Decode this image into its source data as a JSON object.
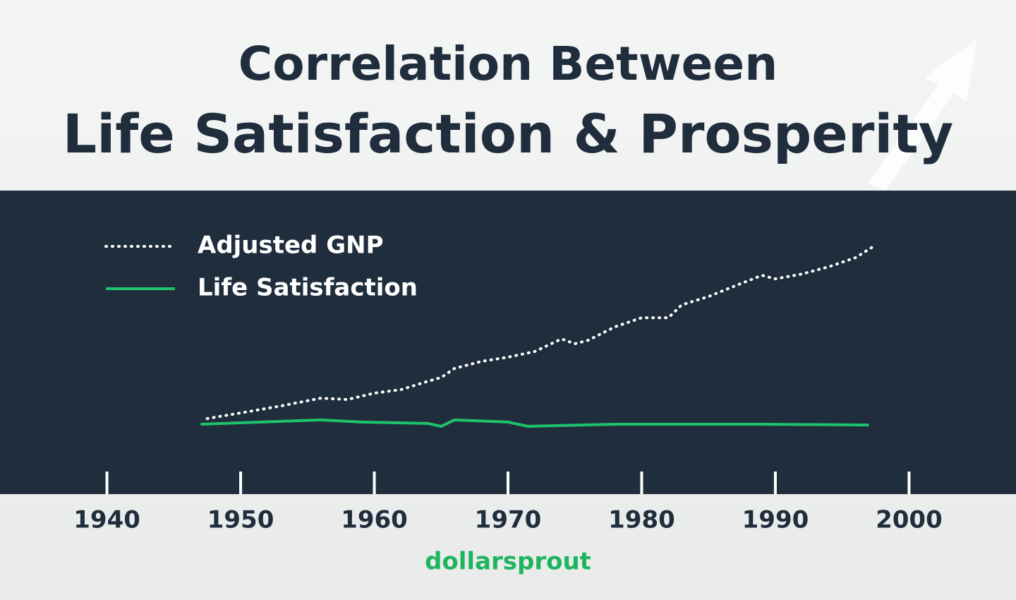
{
  "chart_data": {
    "type": "line",
    "title": "Correlation Between",
    "subtitle": "Life Satisfaction & Prosperity",
    "xlim": [
      1932,
      2008
    ],
    "xticks": [
      1940,
      1950,
      1960,
      1970,
      1980,
      1990,
      2000
    ],
    "ylim": [
      0,
      100
    ],
    "series": [
      {
        "name": "Adjusted GNP",
        "color": "#ffffff",
        "style": "dotted",
        "x": [
          1947.5,
          1950,
          1953,
          1956,
          1958,
          1960,
          1962,
          1964,
          1965,
          1966,
          1968,
          1970,
          1972,
          1974,
          1975,
          1976,
          1978,
          1980,
          1982,
          1983,
          1985,
          1987,
          1989,
          1990,
          1992,
          1994,
          1996,
          1997.5
        ],
        "values": [
          22.9,
          25,
          27.6,
          30.5,
          30,
          32.4,
          33.7,
          36.8,
          38.2,
          41.6,
          44.2,
          45.8,
          47.9,
          52.6,
          50.8,
          52.1,
          57.1,
          60.5,
          60.5,
          65.3,
          68.4,
          72.4,
          76.3,
          75,
          76.8,
          79.5,
          82.9,
          87.6
        ]
      },
      {
        "name": "Life Satisfaction",
        "color": "#1fc36b",
        "style": "solid",
        "x": [
          1947,
          1956,
          1959,
          1964,
          1965,
          1966,
          1970,
          1971.5,
          1978,
          1989,
          1997
        ],
        "values": [
          20.8,
          22.4,
          21.6,
          21.1,
          20,
          22.4,
          21.6,
          20,
          20.8,
          20.8,
          20.5
        ]
      }
    ],
    "logo": "dollarsprout"
  }
}
